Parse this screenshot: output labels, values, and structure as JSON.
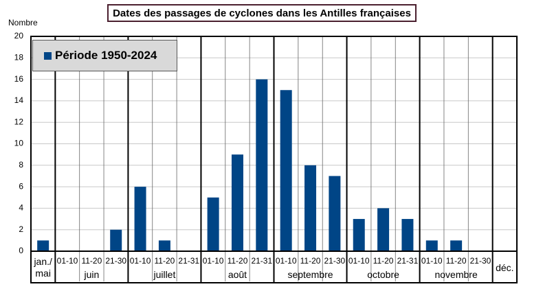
{
  "chart_data": {
    "type": "bar",
    "title": "Dates des passages de cyclones dans les Antilles françaises",
    "y_label": "Nombre",
    "categories": [
      "jan./\nmai",
      "01-10",
      "11-20",
      "21-30",
      "01-10",
      "11-20",
      "21-31",
      "01-10",
      "11-20",
      "21-31",
      "01-10",
      "11-20",
      "21-30",
      "01-10",
      "11-20",
      "21-31",
      "01-10",
      "11-20",
      "21-30",
      "déc."
    ],
    "months": [
      {
        "name": "juin",
        "span": 3
      },
      {
        "name": "juillet",
        "span": 3
      },
      {
        "name": "août",
        "span": 3
      },
      {
        "name": "septembre",
        "span": 3
      },
      {
        "name": "octobre",
        "span": 3
      },
      {
        "name": "novembre",
        "span": 3
      }
    ],
    "series": [
      {
        "name": "Période 1950-2024",
        "color": "#004586",
        "values": [
          1,
          0,
          0,
          2,
          6,
          1,
          0,
          5,
          9,
          16,
          15,
          8,
          7,
          3,
          4,
          3,
          1,
          1,
          0,
          0
        ]
      }
    ],
    "ylim": [
      0,
      20
    ],
    "yticks": [
      0,
      2,
      4,
      6,
      8,
      10,
      12,
      14,
      16,
      18,
      20
    ],
    "grid": true
  }
}
